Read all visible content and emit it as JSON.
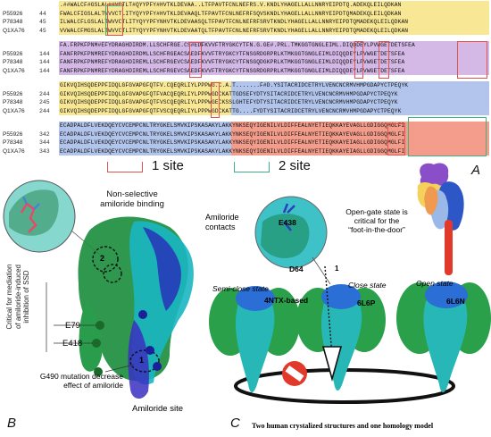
{
  "alignment": {
    "blocks": [
      {
        "band_color": "#f6e27a",
        "rows": [
          {
            "id": "",
            "start": "",
            "seq": ".##WALCF#GSLAL##VCTLT#QYYPFY#HVTKLDEVAA..LTFPAVTFCNLNEFRS.V.KNDLYHAGELLALLNNRYEIPDTQ.ADEKQLEILQDKAN"
          },
          {
            "id": "P55926",
            "start": "44",
            "seq": "FWALCFIGSLALTWVVCTLITYQYYPFY#HVTKLDEVAAQLTFPAVTFCNLNEFRFSQVSKNDLYHAGELLALLNNRYEIPDTQMADEKQLEILQDKAN"
          },
          {
            "id": "P78348",
            "start": "45",
            "seq": "ILWALCFLGSLALTWVVCTLITYQYYPFYNHVTKLDEVAASQLTFPAVTFCNLNEFRFSRVTKNDLYHAGELLALLNNRYEIPDTQMADEKQLEILQDKAN"
          },
          {
            "id": "Q1XA76",
            "start": "45",
            "seq": "VVWALCFMGSLALTWVVCTLITYQYYPFYNHVTKLDEVAATQLTFPAVTFCNLNEFRFSRVTKNDLYHAGELLALLNNRYEIPDTQMADEKQLEILQDKAN"
          }
        ]
      },
      {
        "band_color": "#c9a8e0",
        "rows": [
          {
            "id": "",
            "start": "",
            "seq": "FA.FRPKFPNM#EFYDRAGHDIRDM.LLSCHFRGE.CS#EDFKVVFTRYGKCYTFN.G.GE#.PRL.TMKGGTGNGLEIML.DIQQDEYLPVWGETDETSFEA"
          },
          {
            "id": "P55926",
            "start": "144",
            "seq": "FANFRPKFPNMREFYDRAGHDIRDMLLSCHFRGEACSAEDFKVVFTRYGKCYTFNSGRDGRPRLKTMKGGTGNGLEIMLDIQQDEYLPVWGETDETSFEA"
          },
          {
            "id": "P78348",
            "start": "144",
            "seq": "FANFRPKFPNMREFYDRAGHDIREMLLSCHFRGEVCSAEDFKVVFTRYGKCYTFNSGQDGKPRLKTMKGGTGNGLEIMLDIQQDEYLPVWGETDETSFEA"
          },
          {
            "id": "Q1XA76",
            "start": "144",
            "seq": "FANFRPKFPNMREFYDRAGHDIREMLLSCHFRGEVCSAEDFKVVFTRYGKCYTFNSGRDGRPRLKTMKGGTGNGLEIMLDIQQDEYLPVWGETDETSFEA"
          }
        ]
      },
      {
        "band_color": "#f6e27a",
        "band_color2": "#9fb6e6",
        "rows": [
          {
            "id": "",
            "start": "",
            "seq": "GIKVQIHSQDEPPFIDQLGFGVAPGFQTFV.CQEQRLIYLPPPWG.C.A.T.......F#D.YSITACRIDCETRYLVENCNCRMVHMPGDAPYCTPEQYK"
          },
          {
            "id": "P55926",
            "start": "244",
            "seq": "GIKVQIHSQDEPPFIDQLGFGVAPGFQTFVACQEQRLIYLPPPWGDCKATTGDSEFYDTYSITACRIDCETRYLVENCNCRMVHMPGDAPYCTPEQYK"
          },
          {
            "id": "P78348",
            "start": "245",
            "seq": "GIKVQIHSQDEPPFIDQLGFGVAPGFQTFVSCQEQRLIYLPPPWGECKSSLGHTEFYDTYSITACRIDCETRYLVENCNCRMVHMPGDAPYCTPEQYK"
          },
          {
            "id": "Q1XA76",
            "start": "244",
            "seq": "GIKVQIHSQDEPPFIDQLGFGVAPGFQTFVSCQEQRLIYLPPPWGDCKATTG....FYDTYSITACRIDCETRYLVENCNCRMVHMPGDAPYCTPEQYK"
          }
        ]
      },
      {
        "band_color": "#9fb6e6",
        "band_color2": "#f0846e",
        "rows": [
          {
            "id": "",
            "start": "",
            "seq": "ECADPALDFLVEKDQEYCVCEMPCNLTRYGKELSMVKIPSKASAKYLAKKYNKSEQYIGENILVLDIFFEALNYETIEQKKAYEVAGLLGDIGGQMGLFI"
          },
          {
            "id": "P55926",
            "start": "342",
            "seq": "ECADPALDFLVEKDQEYCVCEMPCNLTRYGKELSMVKIPSKASAKYLAKKYNKSEQYIGENILVLDIFFEALNYETIEQKKAYEVAGLLGDIGGQMGLFI"
          },
          {
            "id": "P78348",
            "start": "344",
            "seq": "ECADPALDFLVEKDQEYCVCEMPCNLTRYGKELSMVKIPSKASAKYLAKKYNKSEQYIGENILVLDIFFEALNYETIEQKKAYEIAGLLGDIGGQMGLFI"
          },
          {
            "id": "Q1XA76",
            "start": "343",
            "seq": "ECADPALDFLVEKDQEYCVCEMPCNLTRYGKELSMVKIPSKASAKYLAKKYNKSEQYIGENILVLDIFFEALNYETIEQKKAYEIAGLLGDIGGQMGLFI"
          }
        ]
      }
    ]
  },
  "legend": {
    "site1": "1 site",
    "site2": "2 site",
    "site1_color": "#e4524f",
    "site2_color": "#3fb27f"
  },
  "panel_a": {
    "letter": "A"
  },
  "panel_b": {
    "letter": "B",
    "non_selective": "Non-selective\namiloride binding",
    "critical": "Critical for mediation\nof amiloride-induced\ninhibition of SSD",
    "e79": "E79",
    "e418": "E418",
    "g490": "G490 mutation decrease\neffect of amiloride",
    "site_label": "Amiloride site",
    "site_marker_1": "1",
    "site_marker_2": "2"
  },
  "panel_c": {
    "letter": "C",
    "contacts": "Amiloride\ncontacts",
    "e438": "E438",
    "d64": "D64",
    "open_gate": "Open-gate state is\ncritical for the\n“foot-in-the-door”",
    "marker": "1",
    "semi_close": "Semi-close state",
    "ntx": "4NTX-based",
    "close": "Close state",
    "l6p": "6L6P",
    "open": "Open state",
    "l6n": "6L6N",
    "caption": "Two human crystalized structures and one homology model"
  },
  "colors": {
    "teal": "#1fb8b0",
    "green": "#2f9a3f",
    "blue": "#2a6ed6",
    "navy": "#1a2a9a",
    "red": "#e02020"
  }
}
